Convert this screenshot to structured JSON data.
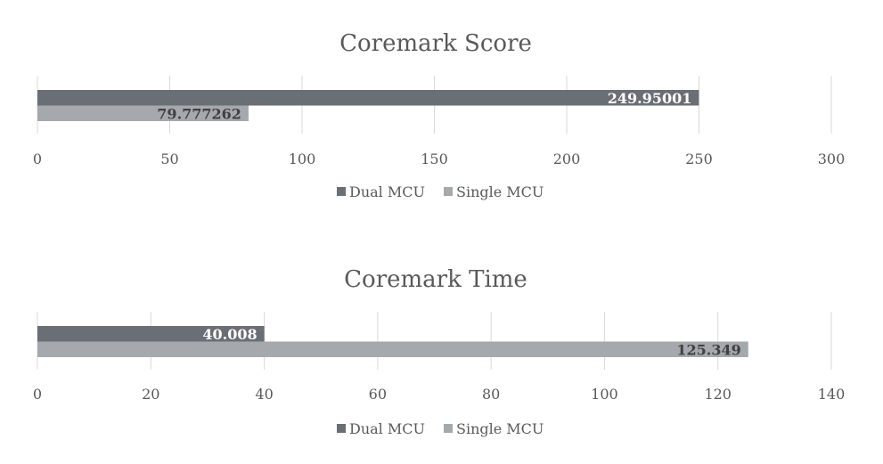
{
  "colors": {
    "dual": "#6a6e75",
    "single": "#a5a8ac",
    "grid": "#d9d9d9",
    "text": "#595959"
  },
  "chart_data": [
    {
      "type": "bar",
      "orientation": "horizontal",
      "title": "Coremark Score",
      "xlim": [
        0,
        300
      ],
      "ticks": [
        0,
        50,
        100,
        150,
        200,
        250,
        300
      ],
      "tick_labels": [
        "0",
        "50",
        "100",
        "150",
        "200",
        "250",
        "300"
      ],
      "grid": true,
      "legend_position": "bottom",
      "series": [
        {
          "name": "Dual MCU",
          "values": [
            249.95001
          ],
          "label": "249.95001"
        },
        {
          "name": "Single MCU",
          "values": [
            79.777262
          ],
          "label": "79.777262"
        }
      ]
    },
    {
      "type": "bar",
      "orientation": "horizontal",
      "title": "Coremark Time",
      "xlim": [
        0,
        140
      ],
      "ticks": [
        0,
        20,
        40,
        60,
        80,
        100,
        120,
        140
      ],
      "tick_labels": [
        "0",
        "20",
        "40",
        "60",
        "80",
        "100",
        "120",
        "140"
      ],
      "grid": true,
      "legend_position": "bottom",
      "series": [
        {
          "name": "Dual MCU",
          "values": [
            40.008
          ],
          "label": "40.008"
        },
        {
          "name": "Single MCU",
          "values": [
            125.349
          ],
          "label": "125.349"
        }
      ]
    }
  ]
}
